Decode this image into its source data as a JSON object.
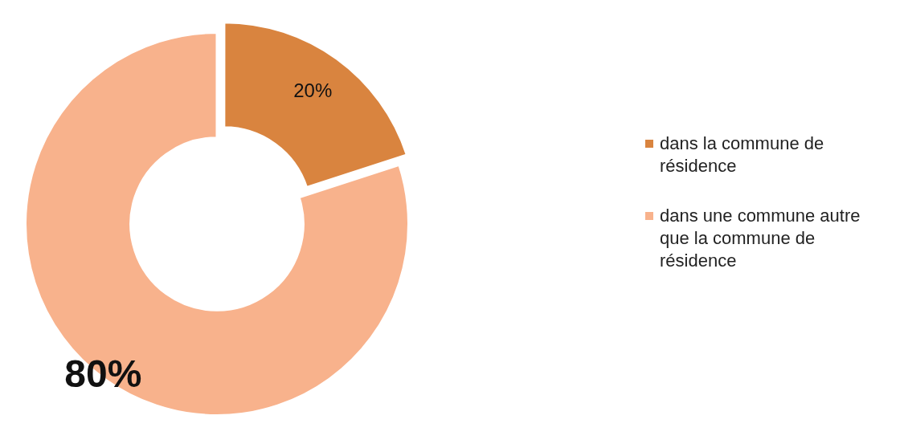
{
  "chart_data": {
    "type": "donut",
    "categories": [
      "dans la commune de résidence",
      "dans une commune autre que la commune de résidence"
    ],
    "values": [
      20,
      80
    ],
    "colors": [
      "#d9843f",
      "#f8b28c"
    ],
    "value_labels": [
      "20%",
      "80%"
    ],
    "legend": "right"
  }
}
